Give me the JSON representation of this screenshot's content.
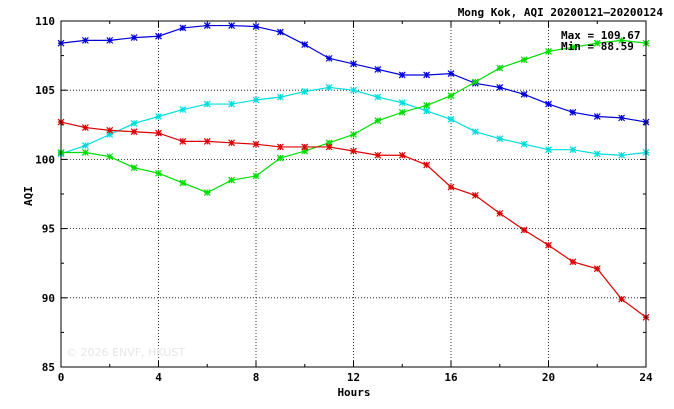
{
  "chart_data": {
    "type": "line",
    "title": "Mong Kok, AQI 20200121–20200124",
    "xlabel": "Hours",
    "ylabel": "AQI",
    "xlim": [
      0,
      24
    ],
    "ylim": [
      85,
      110
    ],
    "xticks": [
      0,
      4,
      8,
      12,
      16,
      20,
      24
    ],
    "yticks": [
      85,
      90,
      95,
      100,
      105,
      110
    ],
    "grid": true,
    "stats": {
      "max_label": "Max = 109.67",
      "min_label": "Min =  88.59"
    },
    "watermark": "© 2026  ENVF, HKUST",
    "x": [
      0,
      1,
      2,
      3,
      4,
      5,
      6,
      7,
      8,
      9,
      10,
      11,
      12,
      13,
      14,
      15,
      16,
      17,
      18,
      19,
      20,
      21,
      22,
      23,
      24
    ],
    "series": [
      {
        "color": "#0000dd",
        "values": [
          108.4,
          108.6,
          108.6,
          108.8,
          108.9,
          109.5,
          109.67,
          109.67,
          109.6,
          109.2,
          108.3,
          107.3,
          106.9,
          106.5,
          106.1,
          106.1,
          106.2,
          105.5,
          105.2,
          104.7,
          104.0,
          103.4,
          103.1,
          103.0,
          102.7
        ]
      },
      {
        "color": "#00dddd",
        "values": [
          100.4,
          101.0,
          101.8,
          102.6,
          103.1,
          103.6,
          104.0,
          104.0,
          104.3,
          104.5,
          104.9,
          105.2,
          105.0,
          104.5,
          104.1,
          103.5,
          102.9,
          102.0,
          101.5,
          101.1,
          100.7,
          100.7,
          100.4,
          100.3,
          100.5
        ]
      },
      {
        "color": "#00dd00",
        "values": [
          100.5,
          100.5,
          100.2,
          99.4,
          99.0,
          98.3,
          97.6,
          98.5,
          98.8,
          100.1,
          100.6,
          101.2,
          101.8,
          102.8,
          103.4,
          103.9,
          104.6,
          105.6,
          106.6,
          107.2,
          107.8,
          108.1,
          108.4,
          108.6,
          108.4
        ]
      },
      {
        "color": "#dd0000",
        "values": [
          102.7,
          102.3,
          102.1,
          102.0,
          101.9,
          101.3,
          101.3,
          101.2,
          101.1,
          100.9,
          100.9,
          100.9,
          100.6,
          100.3,
          100.3,
          99.6,
          98.0,
          97.4,
          96.1,
          94.9,
          93.8,
          92.6,
          92.1,
          89.9,
          88.59
        ]
      }
    ]
  }
}
